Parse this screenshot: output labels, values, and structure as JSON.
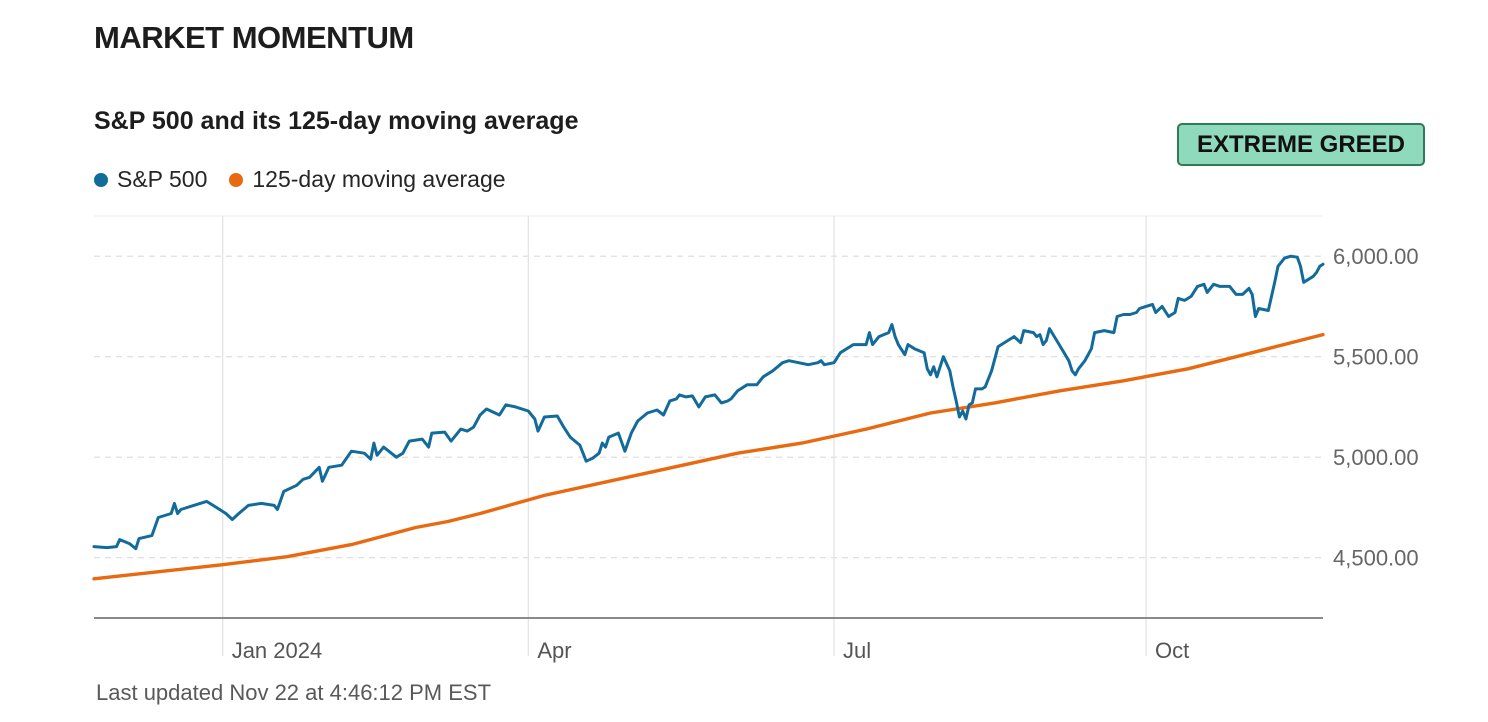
{
  "header": {
    "title": "MARKET MOMENTUM"
  },
  "chart_title": "S&P 500 and its 125-day moving average",
  "badge": {
    "label": "EXTREME GREED",
    "background": "#8fd9bc"
  },
  "colors": {
    "sp500": "#126b9a",
    "moving_average": "#e8690f",
    "grid": "#dcdcdc",
    "axis": "#8a8a8a"
  },
  "footer": {
    "updated": "Last updated Nov 22 at 4:46:12 PM EST"
  },
  "chart_data": {
    "type": "line",
    "title": "S&P 500 and its 125-day moving average",
    "xlabel": "",
    "ylabel": "",
    "x_unit": "days since 2023-11-06",
    "xlim": [
      0,
      382
    ],
    "ylim": [
      4200,
      6200
    ],
    "grid": true,
    "legend_position": "top-left",
    "y_ticks": [
      {
        "value": 6000,
        "label": "6,000.00"
      },
      {
        "value": 5500,
        "label": "5,500.00"
      },
      {
        "value": 5000,
        "label": "5,000.00"
      },
      {
        "value": 4500,
        "label": "4,500.00"
      }
    ],
    "x_ticks": [
      {
        "value": 40,
        "label": "Jan 2024"
      },
      {
        "value": 135,
        "label": "Apr"
      },
      {
        "value": 230,
        "label": "Jul"
      },
      {
        "value": 327,
        "label": "Oct"
      }
    ],
    "series": [
      {
        "name": "S&P 500",
        "color": "#126b9a",
        "points": [
          [
            0,
            4555
          ],
          [
            4,
            4550
          ],
          [
            7,
            4555
          ],
          [
            8,
            4590
          ],
          [
            11,
            4570
          ],
          [
            13,
            4545
          ],
          [
            14,
            4595
          ],
          [
            18,
            4610
          ],
          [
            20,
            4700
          ],
          [
            24,
            4720
          ],
          [
            25,
            4770
          ],
          [
            26,
            4720
          ],
          [
            27,
            4740
          ],
          [
            31,
            4760
          ],
          [
            35,
            4780
          ],
          [
            38,
            4750
          ],
          [
            41,
            4720
          ],
          [
            43,
            4690
          ],
          [
            45,
            4720
          ],
          [
            48,
            4760
          ],
          [
            52,
            4770
          ],
          [
            56,
            4760
          ],
          [
            57,
            4740
          ],
          [
            59,
            4830
          ],
          [
            63,
            4860
          ],
          [
            65,
            4890
          ],
          [
            67,
            4900
          ],
          [
            70,
            4950
          ],
          [
            71,
            4880
          ],
          [
            73,
            4950
          ],
          [
            77,
            4960
          ],
          [
            80,
            5030
          ],
          [
            84,
            5020
          ],
          [
            86,
            4990
          ],
          [
            87,
            5070
          ],
          [
            88,
            5010
          ],
          [
            90,
            5050
          ],
          [
            94,
            5000
          ],
          [
            96,
            5020
          ],
          [
            98,
            5080
          ],
          [
            102,
            5090
          ],
          [
            104,
            5050
          ],
          [
            105,
            5120
          ],
          [
            109,
            5125
          ],
          [
            111,
            5080
          ],
          [
            114,
            5140
          ],
          [
            116,
            5130
          ],
          [
            118,
            5150
          ],
          [
            120,
            5210
          ],
          [
            122,
            5240
          ],
          [
            126,
            5210
          ],
          [
            128,
            5260
          ],
          [
            131,
            5250
          ],
          [
            135,
            5230
          ],
          [
            137,
            5190
          ],
          [
            138,
            5130
          ],
          [
            140,
            5200
          ],
          [
            144,
            5205
          ],
          [
            146,
            5150
          ],
          [
            148,
            5100
          ],
          [
            151,
            5060
          ],
          [
            153,
            4980
          ],
          [
            155,
            4995
          ],
          [
            157,
            5020
          ],
          [
            158,
            5070
          ],
          [
            159,
            5050
          ],
          [
            160,
            5100
          ],
          [
            163,
            5120
          ],
          [
            165,
            5030
          ],
          [
            167,
            5120
          ],
          [
            169,
            5180
          ],
          [
            172,
            5220
          ],
          [
            175,
            5235
          ],
          [
            177,
            5210
          ],
          [
            179,
            5280
          ],
          [
            181,
            5290
          ],
          [
            182,
            5310
          ],
          [
            184,
            5300
          ],
          [
            186,
            5305
          ],
          [
            188,
            5250
          ],
          [
            190,
            5300
          ],
          [
            193,
            5310
          ],
          [
            195,
            5270
          ],
          [
            197,
            5280
          ],
          [
            198,
            5290
          ],
          [
            200,
            5330
          ],
          [
            203,
            5360
          ],
          [
            206,
            5360
          ],
          [
            208,
            5400
          ],
          [
            211,
            5430
          ],
          [
            214,
            5470
          ],
          [
            216,
            5480
          ],
          [
            219,
            5470
          ],
          [
            222,
            5460
          ],
          [
            225,
            5470
          ],
          [
            226,
            5480
          ],
          [
            227,
            5460
          ],
          [
            230,
            5470
          ],
          [
            232,
            5520
          ],
          [
            236,
            5560
          ],
          [
            240,
            5560
          ],
          [
            241,
            5620
          ],
          [
            242,
            5560
          ],
          [
            244,
            5600
          ],
          [
            247,
            5620
          ],
          [
            248,
            5660
          ],
          [
            249,
            5600
          ],
          [
            250,
            5560
          ],
          [
            252,
            5510
          ],
          [
            253,
            5560
          ],
          [
            255,
            5540
          ],
          [
            258,
            5520
          ],
          [
            259,
            5440
          ],
          [
            260,
            5410
          ],
          [
            261,
            5450
          ],
          [
            262,
            5400
          ],
          [
            263,
            5450
          ],
          [
            264,
            5500
          ],
          [
            266,
            5430
          ],
          [
            267,
            5350
          ],
          [
            268,
            5280
          ],
          [
            269,
            5200
          ],
          [
            270,
            5230
          ],
          [
            271,
            5190
          ],
          [
            272,
            5260
          ],
          [
            273,
            5270
          ],
          [
            274,
            5340
          ],
          [
            276,
            5340
          ],
          [
            277,
            5350
          ],
          [
            279,
            5430
          ],
          [
            281,
            5550
          ],
          [
            284,
            5580
          ],
          [
            286,
            5600
          ],
          [
            288,
            5570
          ],
          [
            289,
            5630
          ],
          [
            292,
            5620
          ],
          [
            293,
            5600
          ],
          [
            294,
            5610
          ],
          [
            295,
            5560
          ],
          [
            296,
            5580
          ],
          [
            297,
            5640
          ],
          [
            300,
            5560
          ],
          [
            303,
            5480
          ],
          [
            304,
            5430
          ],
          [
            305,
            5410
          ],
          [
            306,
            5440
          ],
          [
            308,
            5480
          ],
          [
            310,
            5540
          ],
          [
            311,
            5620
          ],
          [
            314,
            5630
          ],
          [
            317,
            5620
          ],
          [
            318,
            5700
          ],
          [
            320,
            5710
          ],
          [
            322,
            5710
          ],
          [
            324,
            5720
          ],
          [
            325,
            5740
          ],
          [
            327,
            5750
          ],
          [
            329,
            5760
          ],
          [
            330,
            5720
          ],
          [
            332,
            5750
          ],
          [
            334,
            5700
          ],
          [
            336,
            5720
          ],
          [
            337,
            5790
          ],
          [
            339,
            5780
          ],
          [
            341,
            5800
          ],
          [
            343,
            5850
          ],
          [
            345,
            5860
          ],
          [
            346,
            5820
          ],
          [
            348,
            5860
          ],
          [
            350,
            5850
          ],
          [
            353,
            5850
          ],
          [
            355,
            5810
          ],
          [
            357,
            5810
          ],
          [
            359,
            5840
          ],
          [
            360,
            5810
          ],
          [
            361,
            5700
          ],
          [
            362,
            5740
          ],
          [
            365,
            5730
          ],
          [
            367,
            5870
          ],
          [
            368,
            5950
          ],
          [
            370,
            5990
          ],
          [
            372,
            6000
          ],
          [
            374,
            5995
          ],
          [
            375,
            5950
          ],
          [
            376,
            5870
          ],
          [
            378,
            5890
          ],
          [
            379,
            5900
          ],
          [
            380,
            5920
          ],
          [
            381,
            5950
          ],
          [
            382,
            5960
          ]
        ]
      },
      {
        "name": "125-day moving average",
        "color": "#e8690f",
        "points": [
          [
            0,
            4395
          ],
          [
            40,
            4465
          ],
          [
            60,
            4505
          ],
          [
            80,
            4565
          ],
          [
            100,
            4650
          ],
          [
            110,
            4680
          ],
          [
            120,
            4720
          ],
          [
            140,
            4810
          ],
          [
            160,
            4880
          ],
          [
            180,
            4950
          ],
          [
            200,
            5020
          ],
          [
            220,
            5070
          ],
          [
            240,
            5140
          ],
          [
            260,
            5220
          ],
          [
            280,
            5270
          ],
          [
            300,
            5330
          ],
          [
            320,
            5380
          ],
          [
            340,
            5440
          ],
          [
            360,
            5520
          ],
          [
            382,
            5610
          ]
        ]
      }
    ]
  }
}
